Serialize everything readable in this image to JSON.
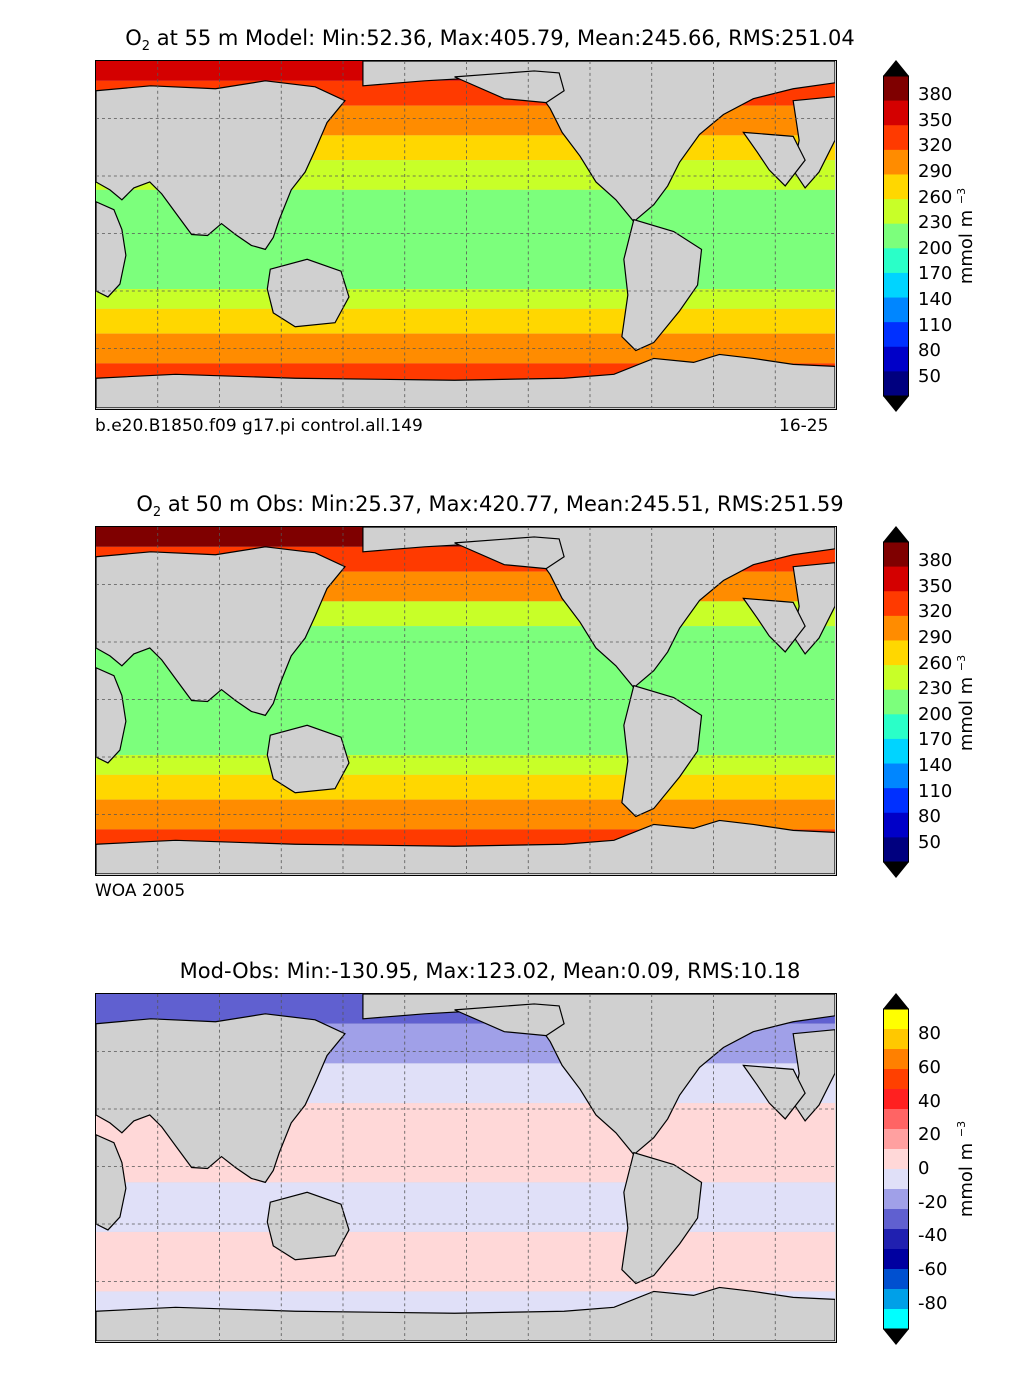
{
  "panels": [
    {
      "title_prefix": "O",
      "title_sub": "2",
      "title_rest": " at 55 m Model: Min:52.36, Max:405.79, Mean:245.66, RMS:251.04",
      "caption_left": "b.e20.B1850.f09 g17.pi control.all.149",
      "caption_right": "16-25",
      "colorbar": {
        "label": "mmol m",
        "label_exp": "−3",
        "ticks": [
          "380",
          "350",
          "320",
          "290",
          "260",
          "230",
          "200",
          "170",
          "140",
          "110",
          "80",
          "50"
        ],
        "colors": [
          "#7f0000",
          "#d40000",
          "#ff3a00",
          "#ff8c00",
          "#ffd700",
          "#c8ff28",
          "#7cff7c",
          "#2affc8",
          "#00d4ff",
          "#0086ff",
          "#0030ff",
          "#0000c8",
          "#00007f"
        ],
        "over_color": "#000000",
        "under_color": "#000000"
      }
    },
    {
      "title_prefix": "O",
      "title_sub": "2",
      "title_rest": " at 50 m Obs: Min:25.37, Max:420.77, Mean:245.51, RMS:251.59",
      "caption_left": "WOA 2005",
      "caption_right": "",
      "colorbar": {
        "label": "mmol m",
        "label_exp": "−3",
        "ticks": [
          "380",
          "350",
          "320",
          "290",
          "260",
          "230",
          "200",
          "170",
          "140",
          "110",
          "80",
          "50"
        ],
        "colors": [
          "#7f0000",
          "#d40000",
          "#ff3a00",
          "#ff8c00",
          "#ffd700",
          "#c8ff28",
          "#7cff7c",
          "#2affc8",
          "#00d4ff",
          "#0086ff",
          "#0030ff",
          "#0000c8",
          "#00007f"
        ],
        "over_color": "#000000",
        "under_color": "#000000"
      }
    },
    {
      "title_prefix": "",
      "title_sub": "",
      "title_rest": "Mod-Obs: Min:-130.95, Max:123.02, Mean:0.09, RMS:10.18",
      "caption_left": "",
      "caption_right": "",
      "colorbar": {
        "label": "mmol m",
        "label_exp": "−3",
        "ticks": [
          "80",
          "60",
          "40",
          "20",
          "0",
          "-20",
          "-40",
          "-60",
          "-80"
        ],
        "colors": [
          "#ffff00",
          "#ffc800",
          "#ff8000",
          "#ff4000",
          "#ff2020",
          "#ff6464",
          "#ffa0a0",
          "#ffd8d8",
          "#e0e0f8",
          "#a0a0e8",
          "#6060d0",
          "#2020b0",
          "#0000a0",
          "#0050d0",
          "#00a0e8",
          "#00ffff"
        ],
        "over_color": "#000000",
        "under_color": "#000000"
      }
    }
  ]
}
